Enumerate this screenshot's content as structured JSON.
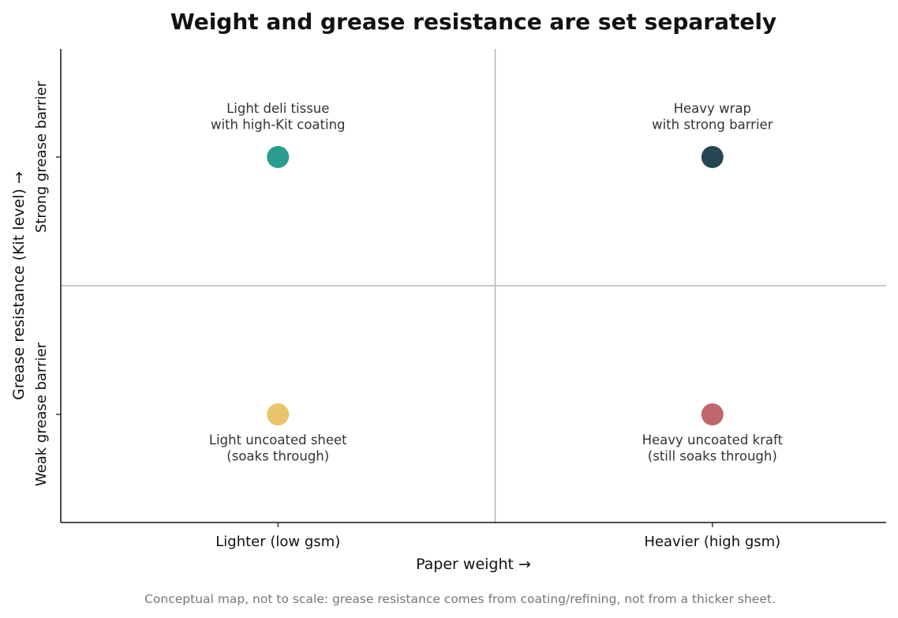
{
  "chart_data": {
    "type": "scatter",
    "title": "Weight and grease resistance are set separately",
    "xlabel": "Paper weight  →",
    "ylabel": "Grease resistance (Kit level)  →",
    "x_ticks": [
      {
        "value": 0,
        "label": "Lighter (low gsm)"
      },
      {
        "value": 1,
        "label": "Heavier (high gsm)"
      }
    ],
    "y_ticks": [
      {
        "value": 0,
        "label": "Weak grease barrier"
      },
      {
        "value": 1,
        "label": "Strong grease barrier"
      }
    ],
    "xlim": [
      -0.5,
      1.4
    ],
    "ylim": [
      -0.42,
      1.42
    ],
    "quadrant_dividers": {
      "x": 0.5,
      "y": 0.5
    },
    "grid": false,
    "points": [
      {
        "x": 0,
        "y": 1,
        "color": "#2a9d8f",
        "label_lines": [
          "Light deli tissue",
          "with high-Kit coating"
        ],
        "label_position": "above"
      },
      {
        "x": 1,
        "y": 1,
        "color": "#264653",
        "label_lines": [
          "Heavy wrap",
          "with strong barrier"
        ],
        "label_position": "above"
      },
      {
        "x": 0,
        "y": 0,
        "color": "#e9c46a",
        "label_lines": [
          "Light uncoated sheet",
          "(soaks through)"
        ],
        "label_position": "below"
      },
      {
        "x": 1,
        "y": 0,
        "color": "#c1666b",
        "label_lines": [
          "Heavy uncoated kraft",
          "(still soaks through)"
        ],
        "label_position": "below"
      }
    ],
    "caption": "Conceptual map, not to scale: grease resistance comes from coating/refining, not from a thicker sheet."
  }
}
